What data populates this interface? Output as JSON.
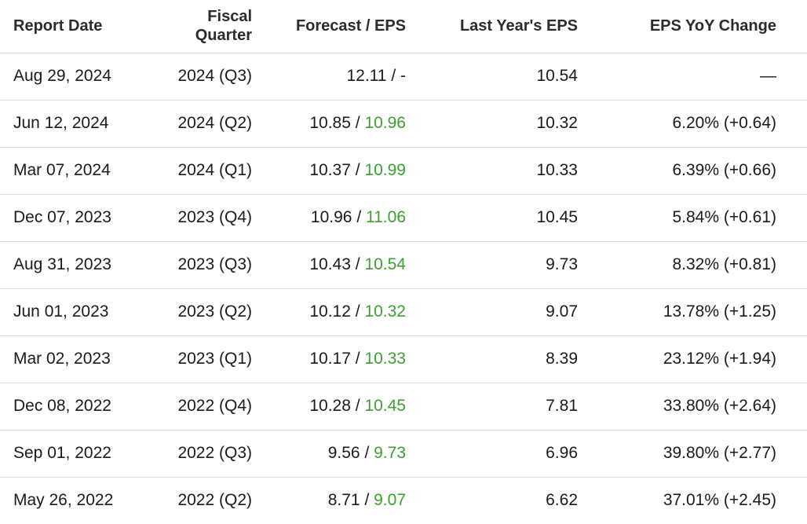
{
  "headers": {
    "report_date": "Report Date",
    "fiscal_quarter_line1": "Fiscal",
    "fiscal_quarter_line2": "Quarter",
    "forecast_eps": "Forecast / EPS",
    "last_year_eps": "Last Year's EPS",
    "yoy_change": "EPS YoY Change"
  },
  "colors": {
    "actual_eps": "#3aa12e",
    "divider": "#dcdcdc",
    "text": "#1a1a1a"
  },
  "rows": [
    {
      "report_date": "Aug 29, 2024",
      "fiscal_quarter": "2024 (Q3)",
      "forecast": "12.11",
      "separator": " / ",
      "actual": "-",
      "actual_is_reported": false,
      "last_year_eps": "10.54",
      "yoy_change": "—"
    },
    {
      "report_date": "Jun 12, 2024",
      "fiscal_quarter": "2024 (Q2)",
      "forecast": "10.85",
      "separator": " / ",
      "actual": "10.96",
      "actual_is_reported": true,
      "last_year_eps": "10.32",
      "yoy_change": "6.20% (+0.64)"
    },
    {
      "report_date": "Mar 07, 2024",
      "fiscal_quarter": "2024 (Q1)",
      "forecast": "10.37",
      "separator": " / ",
      "actual": "10.99",
      "actual_is_reported": true,
      "last_year_eps": "10.33",
      "yoy_change": "6.39% (+0.66)"
    },
    {
      "report_date": "Dec 07, 2023",
      "fiscal_quarter": "2023 (Q4)",
      "forecast": "10.96",
      "separator": " / ",
      "actual": "11.06",
      "actual_is_reported": true,
      "last_year_eps": "10.45",
      "yoy_change": "5.84% (+0.61)"
    },
    {
      "report_date": "Aug 31, 2023",
      "fiscal_quarter": "2023 (Q3)",
      "forecast": "10.43",
      "separator": " / ",
      "actual": "10.54",
      "actual_is_reported": true,
      "last_year_eps": "9.73",
      "yoy_change": "8.32% (+0.81)"
    },
    {
      "report_date": "Jun 01, 2023",
      "fiscal_quarter": "2023 (Q2)",
      "forecast": "10.12",
      "separator": " / ",
      "actual": "10.32",
      "actual_is_reported": true,
      "last_year_eps": "9.07",
      "yoy_change": "13.78% (+1.25)"
    },
    {
      "report_date": "Mar 02, 2023",
      "fiscal_quarter": "2023 (Q1)",
      "forecast": "10.17",
      "separator": " / ",
      "actual": "10.33",
      "actual_is_reported": true,
      "last_year_eps": "8.39",
      "yoy_change": "23.12% (+1.94)"
    },
    {
      "report_date": "Dec 08, 2022",
      "fiscal_quarter": "2022 (Q4)",
      "forecast": "10.28",
      "separator": " / ",
      "actual": "10.45",
      "actual_is_reported": true,
      "last_year_eps": "7.81",
      "yoy_change": "33.80% (+2.64)"
    },
    {
      "report_date": "Sep 01, 2022",
      "fiscal_quarter": "2022 (Q3)",
      "forecast": "9.56",
      "separator": " / ",
      "actual": "9.73",
      "actual_is_reported": true,
      "last_year_eps": "6.96",
      "yoy_change": "39.80% (+2.77)"
    },
    {
      "report_date": "May 26, 2022",
      "fiscal_quarter": "2022 (Q2)",
      "forecast": "8.71",
      "separator": " / ",
      "actual": "9.07",
      "actual_is_reported": true,
      "last_year_eps": "6.62",
      "yoy_change": "37.01% (+2.45)"
    }
  ]
}
